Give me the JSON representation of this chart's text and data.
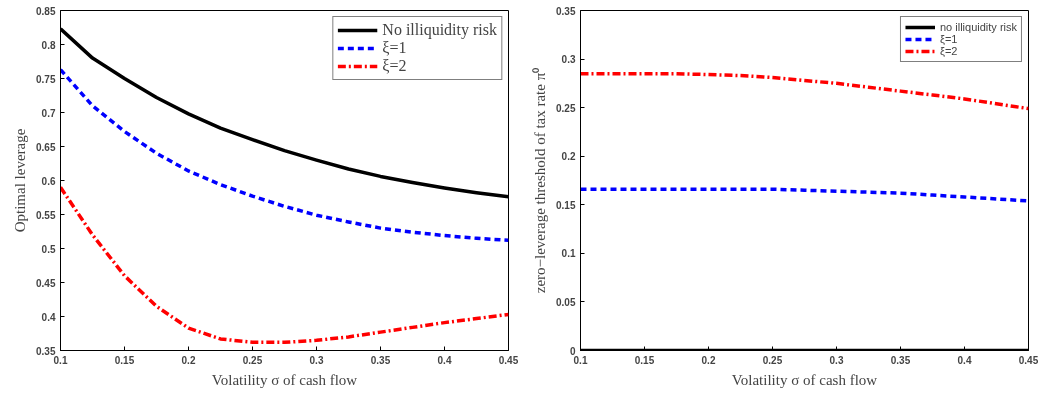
{
  "chart_data": [
    {
      "type": "line",
      "xlabel": "Volatility σ of cash flow",
      "ylabel": "Optimal leverage",
      "x": [
        0.1,
        0.125,
        0.15,
        0.175,
        0.2,
        0.225,
        0.25,
        0.275,
        0.3,
        0.325,
        0.35,
        0.375,
        0.4,
        0.425,
        0.45
      ],
      "xlim": [
        0.1,
        0.45
      ],
      "xticks": [
        0.1,
        0.15,
        0.2,
        0.25,
        0.3,
        0.35,
        0.4,
        0.45
      ],
      "ylim": [
        0.35,
        0.85
      ],
      "yticks": [
        0.35,
        0.4,
        0.45,
        0.5,
        0.55,
        0.6,
        0.65,
        0.7,
        0.75,
        0.8,
        0.85
      ],
      "grid": false,
      "legend": "top right",
      "marker": "none",
      "series": [
        {
          "name": "No illiquidity risk",
          "color": "#000000",
          "line_style": "solid",
          "values": [
            0.823,
            0.78,
            0.75,
            0.722,
            0.698,
            0.677,
            0.66,
            0.644,
            0.63,
            0.617,
            0.606,
            0.597,
            0.589,
            0.582,
            0.576
          ]
        },
        {
          "name": "ξ=1",
          "color": "#0000ff",
          "line_style": "dashed",
          "values": [
            0.763,
            0.71,
            0.672,
            0.64,
            0.614,
            0.594,
            0.577,
            0.562,
            0.549,
            0.539,
            0.53,
            0.524,
            0.519,
            0.515,
            0.512
          ]
        },
        {
          "name": "ξ=2",
          "color": "#ff0000",
          "line_style": "dashdot",
          "values": [
            0.59,
            0.52,
            0.46,
            0.415,
            0.383,
            0.367,
            0.362,
            0.362,
            0.365,
            0.37,
            0.377,
            0.384,
            0.391,
            0.397,
            0.403
          ]
        }
      ]
    },
    {
      "type": "line",
      "xlabel": "Volatility σ of cash flow",
      "ylabel": "zero−leverage threshold of tax rate π⁰",
      "x": [
        0.1,
        0.125,
        0.15,
        0.175,
        0.2,
        0.225,
        0.25,
        0.275,
        0.3,
        0.325,
        0.35,
        0.375,
        0.4,
        0.425,
        0.45
      ],
      "xlim": [
        0.1,
        0.45
      ],
      "xticks": [
        0.1,
        0.15,
        0.2,
        0.25,
        0.3,
        0.35,
        0.4,
        0.45
      ],
      "ylim": [
        0,
        0.35
      ],
      "yticks": [
        0,
        0.05,
        0.1,
        0.15,
        0.2,
        0.25,
        0.3,
        0.35
      ],
      "grid": false,
      "legend": "top right",
      "marker": "none",
      "series": [
        {
          "name": "no illiquidity risk",
          "color": "#000000",
          "line_style": "solid",
          "values": [
            0,
            0,
            0,
            0,
            0,
            0,
            0,
            0,
            0,
            0,
            0,
            0,
            0,
            0,
            0
          ]
        },
        {
          "name": "ξ=1",
          "color": "#0000ff",
          "line_style": "dashed",
          "values": [
            0.166,
            0.166,
            0.166,
            0.166,
            0.166,
            0.166,
            0.166,
            0.165,
            0.164,
            0.163,
            0.162,
            0.16,
            0.158,
            0.156,
            0.154
          ]
        },
        {
          "name": "ξ=2",
          "color": "#ff0000",
          "line_style": "dashdot",
          "values": [
            0.285,
            0.285,
            0.285,
            0.285,
            0.284,
            0.283,
            0.281,
            0.278,
            0.275,
            0.271,
            0.267,
            0.263,
            0.259,
            0.254,
            0.249
          ]
        }
      ]
    }
  ]
}
